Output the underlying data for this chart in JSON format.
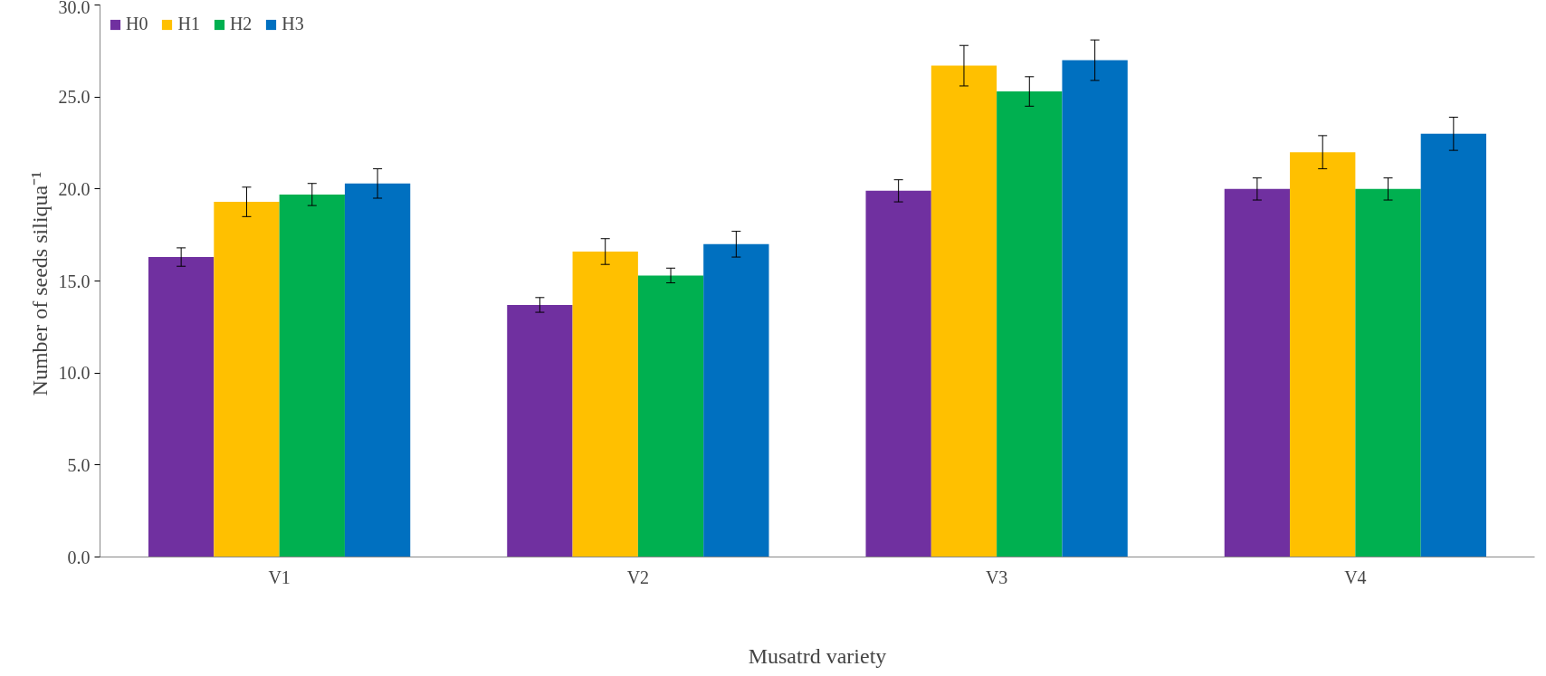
{
  "chart_data": {
    "type": "bar",
    "xlabel": "Musatrd variety",
    "ylabel": "Number of  seeds siliqua⁻¹",
    "categories": [
      "V1",
      "V2",
      "V3",
      "V4"
    ],
    "series": [
      {
        "name": "H0",
        "color": "#7030a0",
        "values": [
          16.3,
          13.7,
          19.9,
          20.0
        ],
        "errors": [
          0.5,
          0.4,
          0.6,
          0.6
        ]
      },
      {
        "name": "H1",
        "color": "#ffc000",
        "values": [
          19.3,
          16.6,
          26.7,
          22.0
        ],
        "errors": [
          0.8,
          0.7,
          1.1,
          0.9
        ]
      },
      {
        "name": "H2",
        "color": "#00b050",
        "values": [
          19.7,
          15.3,
          25.3,
          20.0
        ],
        "errors": [
          0.6,
          0.4,
          0.8,
          0.6
        ]
      },
      {
        "name": "H3",
        "color": "#0070c0",
        "values": [
          20.3,
          17.0,
          27.0,
          23.0
        ],
        "errors": [
          0.8,
          0.7,
          1.1,
          0.9
        ]
      }
    ],
    "ylim": [
      0,
      30
    ],
    "yticks": [
      {
        "value": 0,
        "label": "0.0"
      },
      {
        "value": 5,
        "label": "5.0"
      },
      {
        "value": 10,
        "label": "10.0"
      },
      {
        "value": 15,
        "label": "15.0"
      },
      {
        "value": 20,
        "label": "20.0"
      },
      {
        "value": 25,
        "label": "25.0"
      },
      {
        "value": 30,
        "label": "30.0"
      }
    ],
    "grid": false,
    "legend": "top left"
  }
}
